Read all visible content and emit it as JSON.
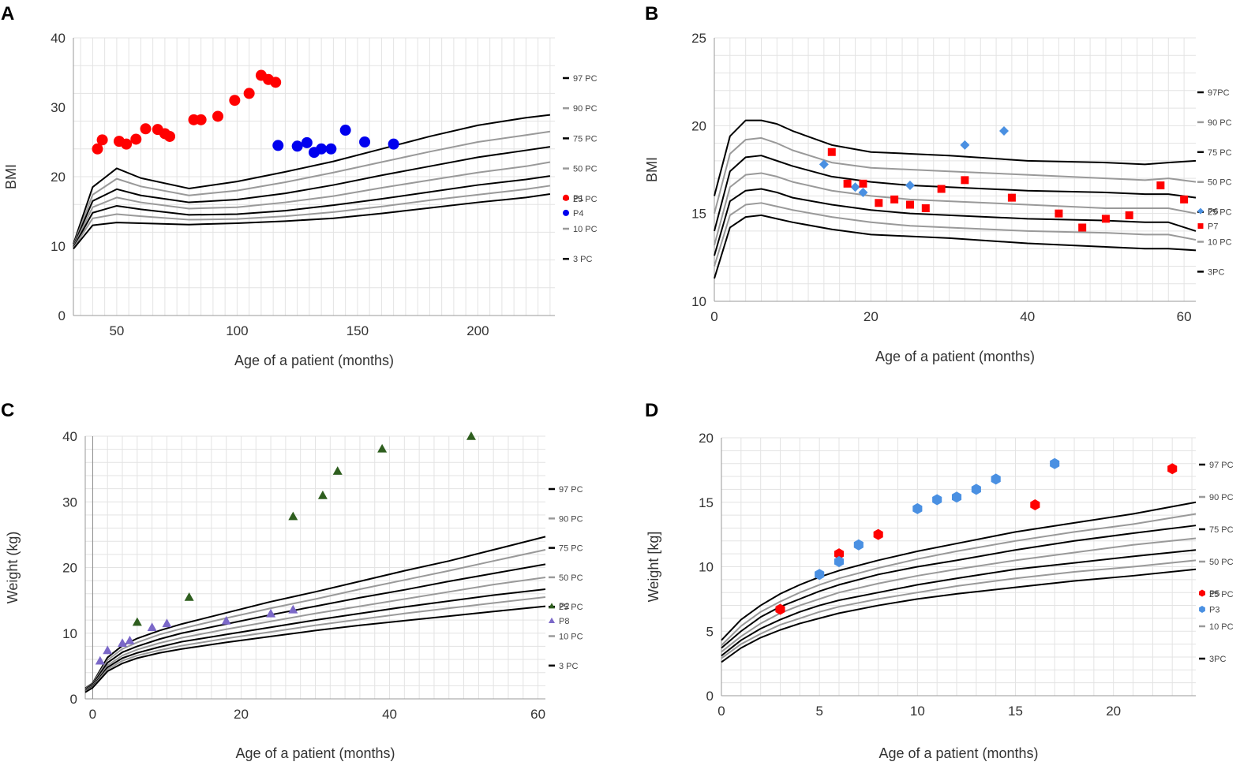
{
  "chart_data": [
    {
      "panel": "A",
      "type": "scatter",
      "xlabel": "Age of a patient (months)",
      "ylabel": "BMI",
      "xlim": [
        32,
        232
      ],
      "ylim": [
        0,
        40
      ],
      "xticks": [
        50,
        100,
        150,
        200
      ],
      "yticks": [
        0,
        10,
        20,
        30,
        40
      ],
      "grid": true,
      "legend_position": "right",
      "percentile_legend": [
        "97 PC",
        "90 PC",
        "75 PC",
        "50 PC",
        "25 PC",
        "10 PC",
        "3 PC"
      ],
      "curve_x": [
        32,
        40,
        50,
        60,
        80,
        100,
        120,
        140,
        160,
        180,
        200,
        220,
        230
      ],
      "curves": [
        {
          "name": "97 PC",
          "color": "#000000",
          "y": [
            10.3,
            18.5,
            21.2,
            19.8,
            18.3,
            19.3,
            20.7,
            22.2,
            24.0,
            25.8,
            27.4,
            28.5,
            28.9
          ]
        },
        {
          "name": "90 PC",
          "color": "#999999",
          "y": [
            10.1,
            17.4,
            19.7,
            18.6,
            17.3,
            18.0,
            19.2,
            20.6,
            22.1,
            23.6,
            25.0,
            26.0,
            26.5
          ]
        },
        {
          "name": "75 PC",
          "color": "#000000",
          "y": [
            10.0,
            16.5,
            18.2,
            17.3,
            16.3,
            16.7,
            17.6,
            18.8,
            20.2,
            21.5,
            22.8,
            23.8,
            24.3
          ]
        },
        {
          "name": "50 PC",
          "color": "#999999",
          "y": [
            9.9,
            15.6,
            17.0,
            16.3,
            15.4,
            15.6,
            16.3,
            17.2,
            18.4,
            19.5,
            20.6,
            21.5,
            22.1
          ]
        },
        {
          "name": "25 PC",
          "color": "#000000",
          "y": [
            9.8,
            14.8,
            15.8,
            15.3,
            14.5,
            14.6,
            15.1,
            15.9,
            16.8,
            17.8,
            18.8,
            19.6,
            20.1
          ]
        },
        {
          "name": "10 PC",
          "color": "#999999",
          "y": [
            9.7,
            14.0,
            14.6,
            14.3,
            13.8,
            13.9,
            14.3,
            14.9,
            15.7,
            16.6,
            17.4,
            18.2,
            18.7
          ]
        },
        {
          "name": "3 PC",
          "color": "#000000",
          "y": [
            9.6,
            13.0,
            13.4,
            13.3,
            13.1,
            13.3,
            13.6,
            14.0,
            14.7,
            15.5,
            16.3,
            17.0,
            17.5
          ]
        }
      ],
      "series": [
        {
          "name": "P1",
          "color": "#ff0000",
          "marker": "circle",
          "x": [
            42,
            44,
            51,
            54,
            58,
            62,
            67,
            70,
            72,
            82,
            85,
            92,
            99,
            105,
            110,
            113,
            116
          ],
          "y": [
            24.0,
            25.3,
            25.1,
            24.7,
            25.4,
            26.9,
            26.8,
            26.2,
            25.8,
            28.2,
            28.2,
            28.7,
            31.0,
            32.0,
            34.6,
            34.0,
            33.6
          ]
        },
        {
          "name": "P4",
          "color": "#0000ee",
          "marker": "circle",
          "x": [
            117,
            125,
            129,
            132,
            135,
            139,
            145,
            153,
            165
          ],
          "y": [
            24.5,
            24.4,
            24.9,
            23.5,
            24.0,
            24.0,
            26.7,
            25.0,
            24.7
          ]
        }
      ]
    },
    {
      "panel": "B",
      "type": "scatter",
      "xlabel": "Age of a patient (months)",
      "ylabel": "BMI",
      "xlim": [
        0,
        61.5
      ],
      "ylim": [
        10,
        25
      ],
      "xticks": [
        0,
        20,
        40,
        60
      ],
      "yticks": [
        10,
        15,
        20,
        25
      ],
      "grid": true,
      "legend_position": "right",
      "percentile_legend": [
        "97PC",
        "90 PC",
        "75 PC",
        "50 PC",
        "25 PC",
        "10 PC",
        "3PC"
      ],
      "curve_x": [
        0,
        2,
        4,
        6,
        8,
        10,
        15,
        20,
        25,
        30,
        40,
        50,
        55,
        58,
        61.5
      ],
      "curves": [
        {
          "name": "97PC",
          "color": "#000000",
          "y": [
            16.0,
            19.4,
            20.3,
            20.3,
            20.1,
            19.7,
            18.9,
            18.5,
            18.4,
            18.3,
            18.0,
            17.9,
            17.8,
            17.9,
            18.0
          ]
        },
        {
          "name": "90 PC",
          "color": "#999999",
          "y": [
            15.0,
            18.4,
            19.2,
            19.3,
            19.0,
            18.6,
            17.9,
            17.6,
            17.5,
            17.4,
            17.2,
            17.0,
            16.9,
            17.0,
            16.8
          ]
        },
        {
          "name": "75 PC",
          "color": "#000000",
          "y": [
            14.0,
            17.4,
            18.2,
            18.3,
            18.0,
            17.7,
            17.1,
            16.8,
            16.6,
            16.5,
            16.3,
            16.2,
            16.1,
            16.1,
            15.9
          ]
        },
        {
          "name": "50 PC",
          "color": "#999999",
          "y": [
            13.2,
            16.5,
            17.2,
            17.3,
            17.1,
            16.8,
            16.3,
            16.0,
            15.8,
            15.7,
            15.5,
            15.3,
            15.3,
            15.3,
            15.0
          ]
        },
        {
          "name": "25 PC",
          "color": "#000000",
          "y": [
            12.6,
            15.7,
            16.3,
            16.4,
            16.2,
            15.9,
            15.5,
            15.2,
            15.0,
            14.9,
            14.7,
            14.6,
            14.5,
            14.5,
            14.0
          ]
        },
        {
          "name": "10 PC",
          "color": "#999999",
          "y": [
            12.0,
            14.9,
            15.5,
            15.6,
            15.4,
            15.2,
            14.8,
            14.5,
            14.3,
            14.2,
            14.0,
            13.9,
            13.8,
            13.8,
            13.5
          ]
        },
        {
          "name": "3PC",
          "color": "#000000",
          "y": [
            11.3,
            14.2,
            14.8,
            14.9,
            14.7,
            14.5,
            14.1,
            13.8,
            13.7,
            13.6,
            13.3,
            13.1,
            13.0,
            13.0,
            12.9
          ]
        }
      ],
      "series": [
        {
          "name": "P6",
          "color": "#4a90e2",
          "marker": "diamond",
          "x": [
            14,
            18,
            19,
            25,
            32,
            37
          ],
          "y": [
            17.8,
            16.5,
            16.2,
            16.6,
            18.9,
            19.7
          ]
        },
        {
          "name": "P7",
          "color": "#ff0000",
          "marker": "square",
          "x": [
            15,
            17,
            19,
            21,
            23,
            25,
            27,
            29,
            32,
            38,
            44,
            47,
            50,
            53,
            57,
            60
          ],
          "y": [
            18.5,
            16.7,
            16.7,
            15.6,
            15.8,
            15.5,
            15.3,
            16.4,
            16.9,
            15.9,
            15.0,
            14.2,
            14.7,
            14.9,
            16.6,
            15.8
          ]
        }
      ]
    },
    {
      "panel": "C",
      "type": "scatter",
      "xlabel": "Age of a patient (months)",
      "ylabel": "Weight (kg)",
      "xlim": [
        -1,
        61
      ],
      "ylim": [
        0,
        40
      ],
      "xticks": [
        0,
        20,
        40,
        60
      ],
      "yticks": [
        0,
        10,
        20,
        30,
        40
      ],
      "grid": true,
      "legend_position": "right",
      "percentile_legend": [
        "97 PC",
        "90 PC",
        "75 PC",
        "50 PC",
        "25 PC",
        "10 PC",
        "3 PC"
      ],
      "curve_x": [
        -1,
        0,
        2,
        4,
        6,
        9,
        12,
        18,
        24,
        30,
        36,
        42,
        48,
        54,
        61
      ],
      "curves": [
        {
          "name": "97 PC",
          "color": "#000000",
          "y": [
            1.6,
            2.4,
            6.3,
            8.1,
            9.2,
            10.4,
            11.4,
            13.1,
            14.8,
            16.3,
            17.9,
            19.5,
            21.0,
            22.7,
            24.7
          ]
        },
        {
          "name": "90 PC",
          "color": "#999999",
          "y": [
            1.5,
            2.3,
            5.9,
            7.6,
            8.6,
            9.8,
            10.7,
            12.3,
            13.8,
            15.2,
            16.7,
            18.1,
            19.5,
            21.0,
            22.7
          ]
        },
        {
          "name": "75 PC",
          "color": "#000000",
          "y": [
            1.4,
            2.2,
            5.5,
            7.1,
            8.0,
            9.1,
            10.0,
            11.4,
            12.8,
            14.1,
            15.4,
            16.6,
            17.9,
            19.1,
            20.5
          ]
        },
        {
          "name": "50 PC",
          "color": "#999999",
          "y": [
            1.3,
            2.0,
            5.1,
            6.6,
            7.5,
            8.5,
            9.3,
            10.6,
            11.8,
            13.0,
            14.1,
            15.2,
            16.3,
            17.4,
            18.5
          ]
        },
        {
          "name": "25 PC",
          "color": "#000000",
          "y": [
            1.2,
            1.9,
            4.8,
            6.2,
            7.0,
            7.9,
            8.7,
            9.8,
            10.9,
            12.0,
            13.0,
            14.0,
            14.9,
            15.8,
            16.7
          ]
        },
        {
          "name": "10 PC",
          "color": "#999999",
          "y": [
            1.1,
            1.8,
            4.5,
            5.8,
            6.6,
            7.4,
            8.1,
            9.2,
            10.2,
            11.2,
            12.1,
            13.0,
            13.8,
            14.6,
            15.5
          ]
        },
        {
          "name": "3 PC",
          "color": "#000000",
          "y": [
            1.0,
            1.7,
            4.2,
            5.4,
            6.2,
            7.0,
            7.6,
            8.6,
            9.5,
            10.4,
            11.2,
            11.9,
            12.6,
            13.3,
            14.1
          ]
        }
      ],
      "series": [
        {
          "name": "P2",
          "color": "#2e5e1e",
          "marker": "triangle",
          "x": [
            6,
            13,
            27,
            31,
            33,
            39,
            51
          ],
          "y": [
            11.7,
            15.5,
            27.8,
            31.0,
            34.7,
            38.1,
            40.0
          ]
        },
        {
          "name": "P8",
          "color": "#7b68c8",
          "marker": "triangle",
          "x": [
            1,
            2,
            4,
            5,
            8,
            10,
            18,
            24,
            27
          ],
          "y": [
            5.8,
            7.4,
            8.5,
            8.9,
            10.9,
            11.5,
            11.9,
            13.0,
            13.6
          ]
        }
      ]
    },
    {
      "panel": "D",
      "type": "scatter",
      "xlabel": "Age of a patient (months)",
      "ylabel": "Weight [kg]",
      "xlim": [
        0,
        24.2
      ],
      "ylim": [
        0,
        20
      ],
      "xticks": [
        0,
        5,
        10,
        15,
        20
      ],
      "yticks": [
        0,
        5,
        10,
        15,
        20
      ],
      "grid": true,
      "legend_position": "right",
      "percentile_legend": [
        "97 PC",
        "90 PC",
        "75 PC",
        "50 PC",
        "25 PC",
        "10 PC",
        "3PC"
      ],
      "curve_x": [
        0,
        1,
        2,
        3,
        4,
        5,
        6,
        8,
        10,
        12,
        15,
        18,
        21,
        24.2
      ],
      "curves": [
        {
          "name": "97 PC",
          "color": "#000000",
          "y": [
            4.3,
            5.9,
            7.0,
            7.9,
            8.6,
            9.2,
            9.7,
            10.5,
            11.2,
            11.8,
            12.7,
            13.4,
            14.1,
            15.0
          ]
        },
        {
          "name": "90 PC",
          "color": "#999999",
          "y": [
            3.9,
            5.4,
            6.5,
            7.3,
            8.0,
            8.6,
            9.1,
            9.9,
            10.6,
            11.2,
            12.0,
            12.7,
            13.3,
            14.1
          ]
        },
        {
          "name": "75 PC",
          "color": "#000000",
          "y": [
            3.7,
            5.0,
            6.1,
            6.9,
            7.5,
            8.1,
            8.6,
            9.4,
            10.0,
            10.5,
            11.3,
            12.0,
            12.6,
            13.2
          ]
        },
        {
          "name": "50 PC",
          "color": "#999999",
          "y": [
            3.4,
            4.6,
            5.6,
            6.4,
            7.0,
            7.5,
            8.0,
            8.7,
            9.3,
            9.8,
            10.5,
            11.1,
            11.7,
            12.2
          ]
        },
        {
          "name": "25 PC",
          "color": "#000000",
          "y": [
            3.1,
            4.3,
            5.2,
            5.9,
            6.5,
            7.0,
            7.4,
            8.0,
            8.6,
            9.1,
            9.8,
            10.3,
            10.8,
            11.3
          ]
        },
        {
          "name": "10 PC",
          "color": "#999999",
          "y": [
            2.9,
            4.0,
            4.8,
            5.5,
            6.0,
            6.5,
            6.9,
            7.5,
            8.0,
            8.5,
            9.1,
            9.6,
            10.0,
            10.5
          ]
        },
        {
          "name": "3PC",
          "color": "#000000",
          "y": [
            2.6,
            3.7,
            4.5,
            5.1,
            5.6,
            6.0,
            6.4,
            7.0,
            7.5,
            7.9,
            8.4,
            8.9,
            9.3,
            9.8
          ]
        }
      ],
      "series": [
        {
          "name": "P5",
          "color": "#ff0000",
          "marker": "hexagon",
          "x": [
            3,
            6,
            8,
            16,
            23
          ],
          "y": [
            6.7,
            11.0,
            12.5,
            14.8,
            17.6
          ]
        },
        {
          "name": "P3",
          "color": "#4a90e2",
          "marker": "hexagon",
          "x": [
            5,
            6,
            7,
            10,
            11,
            12,
            13,
            14,
            17
          ],
          "y": [
            9.4,
            10.4,
            11.7,
            14.5,
            15.2,
            15.4,
            16.0,
            16.8,
            18.0
          ]
        }
      ]
    }
  ]
}
